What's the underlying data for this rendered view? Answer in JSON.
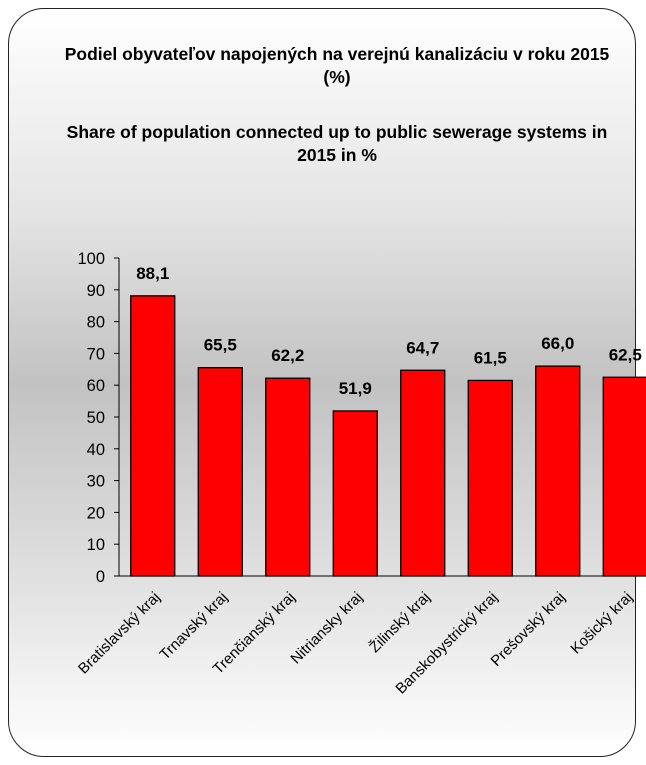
{
  "title_sk": "Podiel obyvateľov napojených na verejnú kanalizáciu v roku 2015 (%)",
  "title_en": "Share of population connected up to public sewerage systems in 2015 in %",
  "colors": {
    "bar": "#ff0000",
    "bar_border": "#000000",
    "axis": "#000000"
  },
  "chart_data": {
    "type": "bar",
    "title": "Podiel obyvateľov napojených na verejnú kanalizáciu v roku 2015 (%) / Share of population connected up to public sewerage systems in 2015 in %",
    "categories": [
      "Bratislavský kraj",
      "Trnavský kraj",
      "Trenčianský kraj",
      "Nitriansky kraj",
      "Žilinský kraj",
      "Banskobystrický kraj",
      "Prešovský kraj",
      "Košický kraj"
    ],
    "values": [
      88.1,
      65.5,
      62.2,
      51.9,
      64.7,
      61.5,
      66.0,
      62.5
    ],
    "value_labels": [
      "88,1",
      "65,5",
      "62,2",
      "51,9",
      "64,7",
      "61,5",
      "66,0",
      "62,5"
    ],
    "yticks": [
      "0",
      "10",
      "20",
      "30",
      "40",
      "50",
      "60",
      "70",
      "80",
      "90",
      "100"
    ],
    "ylim": [
      0,
      100
    ],
    "xlabel": "",
    "ylabel": "",
    "grid": false,
    "legend": "none"
  }
}
